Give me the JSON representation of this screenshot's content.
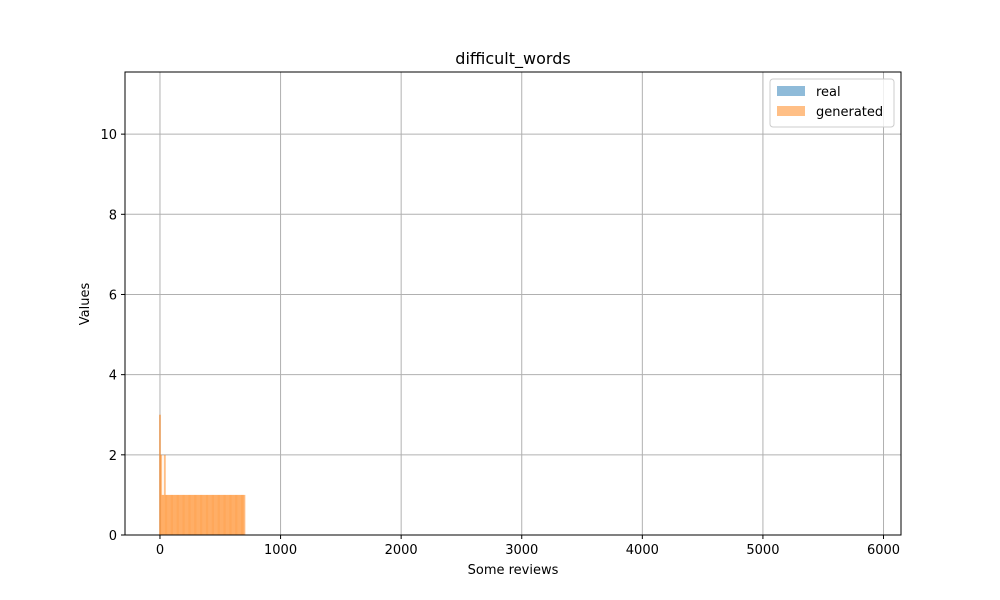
{
  "chart_data": {
    "type": "bar",
    "title": "difficult_words",
    "xlabel": "Some reviews",
    "ylabel": "Values",
    "xlim": [
      -290,
      6145
    ],
    "ylim": [
      0,
      11.55
    ],
    "xticks": [
      0,
      1000,
      2000,
      3000,
      4000,
      5000,
      6000
    ],
    "yticks": [
      0,
      2,
      4,
      6,
      8,
      10
    ],
    "grid": true,
    "legend_position": "top-right",
    "bar_width": 16,
    "series": [
      {
        "name": "real",
        "color": "#1f77b4",
        "opacity": 0.5,
        "x": [],
        "values": []
      },
      {
        "name": "generated",
        "color": "#ff7f0e",
        "opacity": 0.5,
        "x": [
          0,
          10,
          20,
          30,
          40,
          50,
          60,
          70,
          80,
          90,
          100,
          110,
          120,
          130,
          140,
          150,
          160,
          170,
          180,
          190,
          200,
          210,
          220,
          230,
          240,
          250,
          260,
          270,
          280,
          290,
          300,
          310,
          320,
          330,
          340,
          350,
          360,
          370,
          380,
          390,
          400,
          410,
          420,
          430,
          440,
          450,
          460,
          470,
          480,
          490,
          500,
          510,
          520,
          530,
          540,
          550,
          560,
          570,
          580,
          590,
          600,
          610,
          620,
          630,
          640,
          650,
          660,
          670,
          680,
          690,
          700
        ],
        "values": [
          3,
          2,
          1,
          1,
          2,
          1,
          1,
          1,
          1,
          1,
          1,
          1,
          1,
          1,
          1,
          1,
          1,
          1,
          1,
          1,
          1,
          1,
          1,
          1,
          1,
          1,
          1,
          1,
          1,
          1,
          1,
          1,
          1,
          1,
          1,
          1,
          1,
          1,
          1,
          1,
          1,
          1,
          1,
          1,
          1,
          1,
          1,
          1,
          1,
          1,
          1,
          1,
          1,
          1,
          1,
          1,
          1,
          1,
          1,
          1,
          1,
          1,
          1,
          1,
          1,
          1,
          1,
          1,
          1,
          1,
          1
        ]
      }
    ]
  }
}
